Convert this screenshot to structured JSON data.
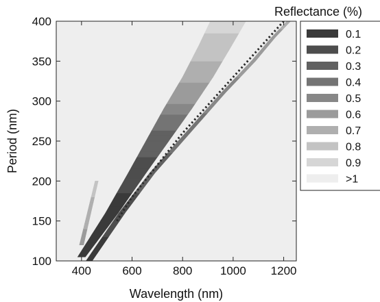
{
  "chart_data": {
    "type": "heatmap",
    "title": "",
    "xlabel": "Wavelength (nm)",
    "ylabel": "Period (nm)",
    "xlim": [
      300,
      1250
    ],
    "ylim": [
      100,
      400
    ],
    "xticks": [
      400,
      600,
      800,
      1000,
      1200
    ],
    "yticks": [
      100,
      150,
      200,
      250,
      300,
      350,
      400
    ],
    "background_level": ">1",
    "colorbar": {
      "title": "Reflectance (%)",
      "levels": [
        {
          "label": "0.1",
          "value": 0.1,
          "color": "#3a3a3a"
        },
        {
          "label": "0.2",
          "value": 0.2,
          "color": "#4d4d4d"
        },
        {
          "label": "0.3",
          "value": 0.3,
          "color": "#616161"
        },
        {
          "label": "0.4",
          "value": 0.4,
          "color": "#747474"
        },
        {
          "label": "0.5",
          "value": 0.5,
          "color": "#878787"
        },
        {
          "label": "0.6",
          "value": 0.6,
          "color": "#9b9b9b"
        },
        {
          "label": "0.7",
          "value": 0.7,
          "color": "#afafaf"
        },
        {
          "label": "0.8",
          "value": 0.8,
          "color": "#c3c3c3"
        },
        {
          "label": "0.9",
          "value": 0.9,
          "color": "#d6d6d6"
        },
        {
          "label": ">1",
          "value": 1.0,
          "color": "#eeeeee"
        }
      ]
    },
    "bands": [
      {
        "name": "upper broad band",
        "centerline": [
          [
            400,
            105
          ],
          [
            520,
            160
          ],
          [
            620,
            210
          ],
          [
            700,
            250
          ],
          [
            780,
            290
          ],
          [
            860,
            330
          ],
          [
            930,
            370
          ],
          [
            980,
            400
          ]
        ],
        "widths": [
          15,
          25,
          35,
          45,
          55,
          60,
          65,
          70
        ],
        "levels": [
          0.1,
          0.1,
          0.2,
          0.3,
          0.5,
          0.7,
          0.8,
          0.9
        ]
      },
      {
        "name": "lower narrow band",
        "centerline": [
          [
            430,
            100
          ],
          [
            560,
            160
          ],
          [
            680,
            210
          ],
          [
            820,
            260
          ],
          [
            960,
            310
          ],
          [
            1080,
            350
          ],
          [
            1160,
            380
          ],
          [
            1220,
            400
          ]
        ],
        "widths": [
          12,
          12,
          10,
          9,
          8,
          8,
          7,
          7
        ],
        "levels": [
          0.1,
          0.2,
          0.3,
          0.4,
          0.5,
          0.6,
          0.6,
          0.7
        ]
      },
      {
        "name": "short spur",
        "centerline": [
          [
            400,
            120
          ],
          [
            430,
            160
          ],
          [
            460,
            200
          ]
        ],
        "widths": [
          8,
          7,
          6
        ],
        "levels": [
          0.6,
          0.7,
          0.8
        ]
      }
    ],
    "dotted_line": {
      "name": "minimum reflectance",
      "points": [
        [
          540,
          150
        ],
        [
          600,
          180
        ],
        [
          700,
          220
        ],
        [
          800,
          260
        ],
        [
          900,
          295
        ],
        [
          1000,
          330
        ],
        [
          1100,
          365
        ],
        [
          1200,
          400
        ]
      ]
    }
  }
}
